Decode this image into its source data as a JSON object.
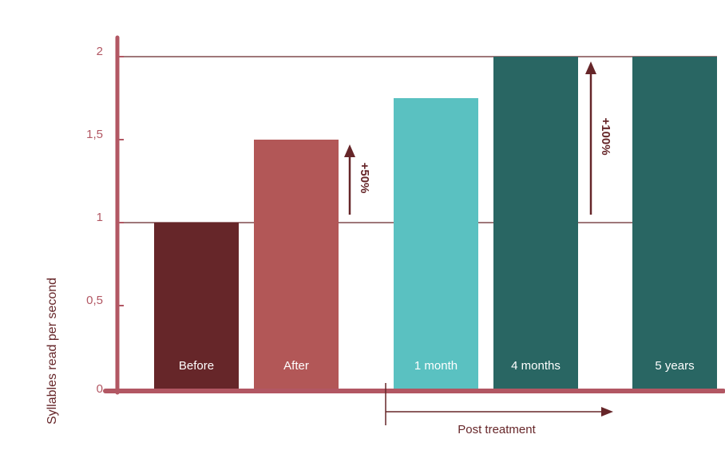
{
  "chart_data": {
    "type": "bar",
    "categories": [
      "Before",
      "After",
      "1 month",
      "4 months",
      "5 years"
    ],
    "values": [
      1.0,
      1.5,
      1.75,
      2.0,
      2.0
    ],
    "bar_colors": [
      "#662629",
      "#b25757",
      "#5ac1c1",
      "#296663",
      "#296663"
    ],
    "ylabel": "Syllables read per second",
    "xlabel": "",
    "ylim": [
      0,
      2
    ],
    "yticks": [
      0,
      0.5,
      1,
      1.5,
      2
    ],
    "ytick_labels": [
      "0",
      "0,5",
      "1",
      "1,5",
      "2"
    ],
    "grid_lines": [
      1,
      2
    ],
    "annotations": [
      {
        "text": "+50%",
        "from": 1,
        "to": 1.5
      },
      {
        "text": "+100%",
        "from": 1,
        "to": 2
      }
    ],
    "group_label": "Post treatment",
    "group_categories": [
      "1 month",
      "4 months",
      "5 years"
    ]
  },
  "colors": {
    "axis": "#b25763",
    "tick_text": "#b25763",
    "gridline": "#662629",
    "arrow": "#662629",
    "group_text": "#662629",
    "ylabel_text": "#662629"
  }
}
